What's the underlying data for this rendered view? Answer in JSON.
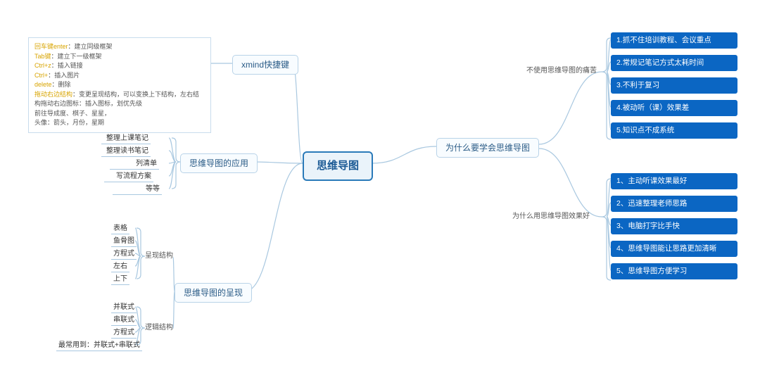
{
  "center": {
    "label": "思维导图"
  },
  "left": {
    "xmind": {
      "label": "xmind快捷键"
    },
    "apps": {
      "label": "思维导图的应用",
      "items": [
        "整理上课笔记",
        "整理读书笔记",
        "列清单",
        "写流程方案",
        "等等"
      ]
    },
    "present": {
      "label": "思维导图的呈现",
      "struct": {
        "label": "呈现结构",
        "items": [
          "表格",
          "鱼骨图",
          "方程式",
          "左右",
          "上下"
        ]
      },
      "logic": {
        "label": "逻辑结构",
        "items": [
          "并联式",
          "串联式",
          "方程式",
          "最常用到：并联式+串联式"
        ]
      }
    },
    "notebox": {
      "lines": [
        {
          "kw": "回车键enter",
          "t": "：建立同级框架"
        },
        {
          "kw": "Tab键",
          "t": "：建立下一级框架"
        },
        {
          "kw": "Ctrl+z",
          "t": "：插入链接"
        },
        {
          "kw": "Ctrl+",
          "t": "：插入图片"
        },
        {
          "kw": "delete",
          "t": "：删除"
        },
        {
          "kw": "拖动右边结构",
          "t": "：变更呈现结构，可以变换上下结构，左右结构拖动右边图标：插入图标，划优先级"
        },
        {
          "t": "前往导成度、棋子、星星，"
        },
        {
          "t": "头像：箭头，月份，星期"
        }
      ]
    }
  },
  "right": {
    "why": {
      "label": "为什么要学会思维导图"
    },
    "pain": {
      "label": "不使用思维导图的痛苦",
      "items": [
        "1.抓不住培训教程、会议重点",
        "2.常规记笔记方式太耗时间",
        "3.不利于复习",
        "4.被动听（课）效果差",
        "5.知识点不成系统"
      ]
    },
    "good": {
      "label": "为什么用思维导图效果好",
      "items": [
        "1、主动听课效果最好",
        "2、迅速整理老师思路",
        "3、电脑打字比手快",
        "4、思维导图能让思路更加清晰",
        "5、思维导图方便学习"
      ]
    }
  },
  "colors": {
    "line": "#a9c8e0",
    "blue": "#0b66c3"
  }
}
